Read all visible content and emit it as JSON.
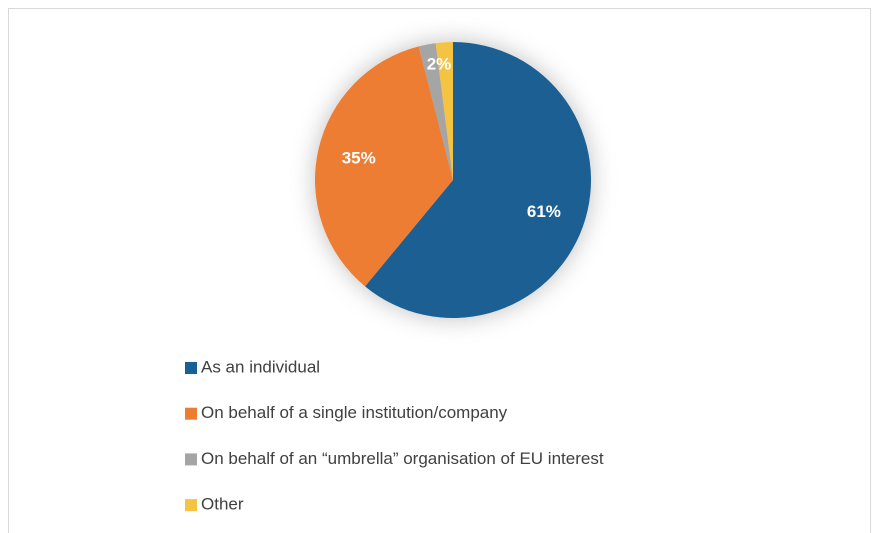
{
  "chart_data": {
    "type": "pie",
    "categories": [
      "As an individual",
      "On behalf of a single institution/company",
      "On behalf of an “umbrella” organisation of EU interest",
      "Other"
    ],
    "values": [
      61,
      35,
      2,
      2
    ],
    "value_labels": [
      "61%",
      "35%",
      "2%",
      null
    ],
    "colors": [
      "#1b6093",
      "#ed7d31",
      "#a5a5a5",
      "#f5c342"
    ],
    "legend": "bottom"
  }
}
